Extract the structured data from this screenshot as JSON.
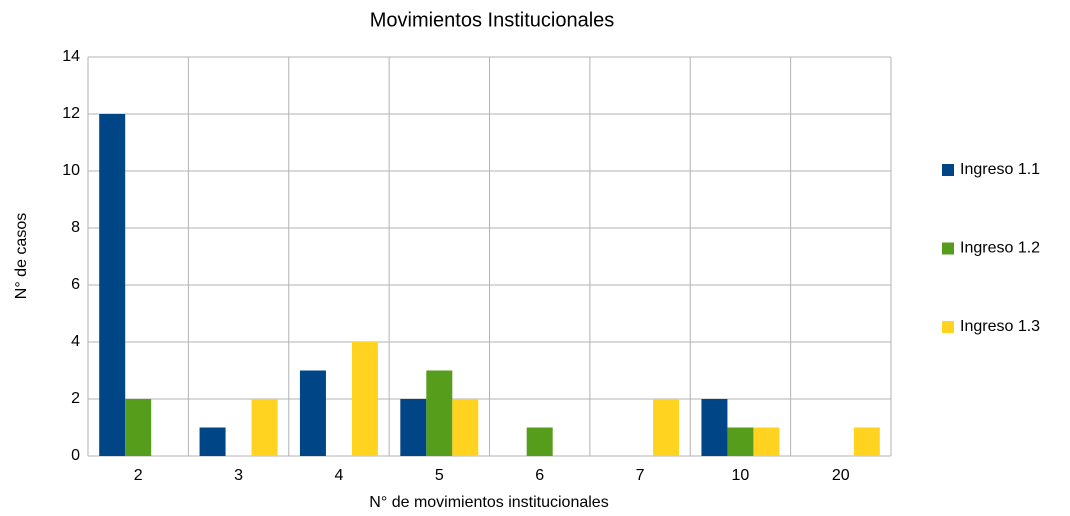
{
  "chart_data": {
    "type": "bar",
    "title": "Movimientos Institucionales",
    "x_label": "N° de movimientos institucionales",
    "y_label": "N° de casos",
    "categories": [
      "2",
      "3",
      "4",
      "5",
      "6",
      "7",
      "10",
      "20"
    ],
    "series": [
      {
        "name": "Ingreso 1.1",
        "color": "#004586",
        "values": [
          12,
          1,
          3,
          2,
          0,
          0,
          2,
          0
        ]
      },
      {
        "name": "Ingreso 1.2",
        "color": "#579d1c",
        "values": [
          2,
          0,
          0,
          3,
          1,
          0,
          1,
          0
        ]
      },
      {
        "name": "Ingreso 1.3",
        "color": "#ffd320",
        "values": [
          0,
          2,
          4,
          2,
          0,
          2,
          1,
          1
        ]
      }
    ],
    "ylim": [
      0,
      14
    ],
    "yticks": [
      0,
      2,
      4,
      6,
      8,
      10,
      12,
      14
    ],
    "grid": true,
    "legend": "right"
  }
}
